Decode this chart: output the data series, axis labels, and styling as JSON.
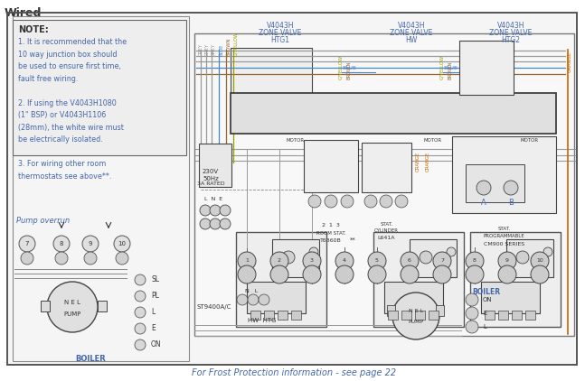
{
  "title": "Wired",
  "bg_color": "#ffffff",
  "note_title": "NOTE:",
  "note_lines": [
    "1. It is recommended that the",
    "10 way junction box should",
    "be used to ensure first time,",
    "fault free wiring.",
    "",
    "2. If using the V4043H1080",
    "(1\" BSP) or V4043H1106",
    "(28mm), the white wire must",
    "be electrically isolated.",
    "",
    "3. For wiring other room",
    "thermostats see above**."
  ],
  "pump_overrun_label": "Pump overrun",
  "frost_text": "For Frost Protection information - see page 22",
  "zone_valve_labels": [
    [
      "V4043H",
      "ZONE VALVE",
      "HTG1"
    ],
    [
      "V4043H",
      "ZONE VALVE",
      "HW"
    ],
    [
      "V4043H",
      "ZONE VALVE",
      "HTG2"
    ]
  ],
  "wire_grey": "#999999",
  "wire_blue": "#4488cc",
  "wire_brown": "#996633",
  "wire_gyellow": "#999900",
  "wire_orange": "#cc6600",
  "wire_dark": "#444444",
  "text_blue": "#4466aa",
  "text_dark": "#333333"
}
